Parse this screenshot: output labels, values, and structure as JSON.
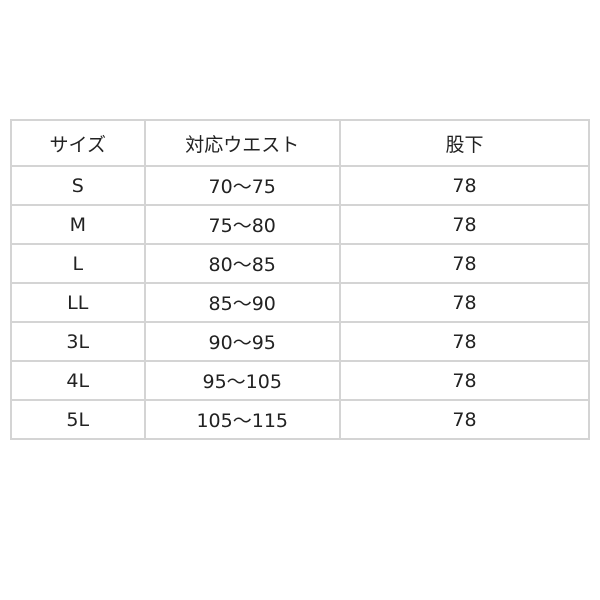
{
  "table": {
    "headers": [
      "サイズ",
      "対応ウエスト",
      "股下"
    ],
    "rows": [
      [
        "S",
        "70〜75",
        "78"
      ],
      [
        "M",
        "75〜80",
        "78"
      ],
      [
        "L",
        "80〜85",
        "78"
      ],
      [
        "LL",
        "85〜90",
        "78"
      ],
      [
        "3L",
        "90〜95",
        "78"
      ],
      [
        "4L",
        "95〜105",
        "78"
      ],
      [
        "5L",
        "105〜115",
        "78"
      ]
    ]
  }
}
